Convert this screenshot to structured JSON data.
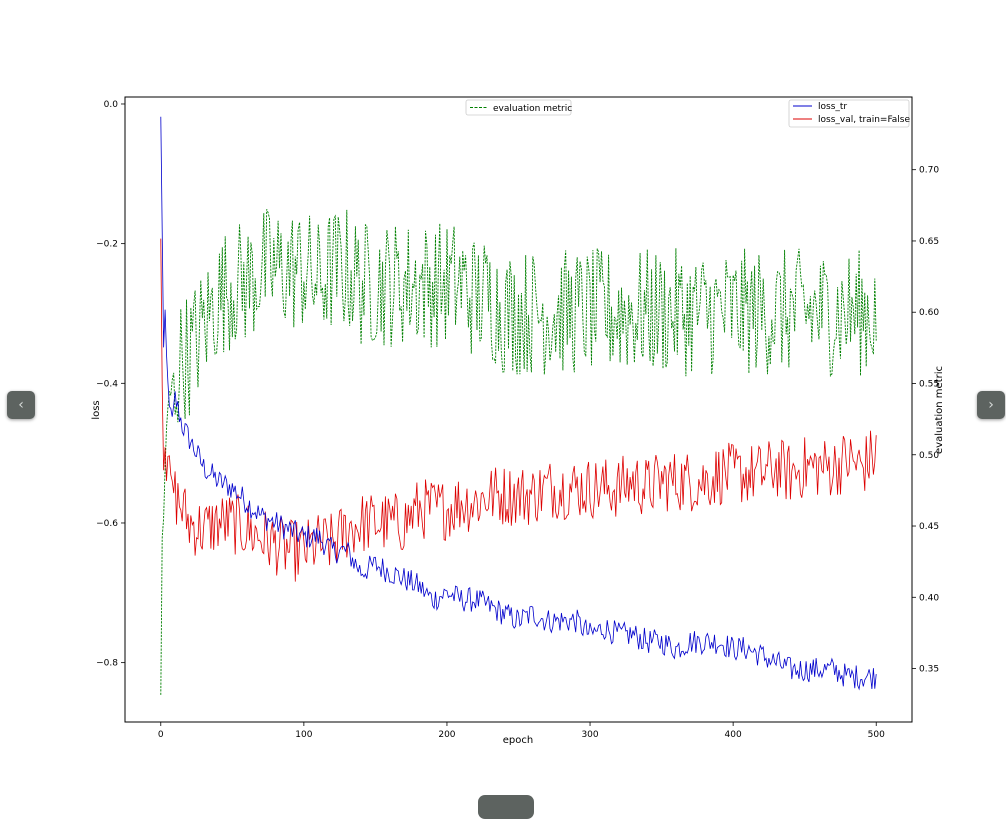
{
  "navigation": {
    "prev_icon": "chevron-left-icon",
    "next_icon": "chevron-right-icon",
    "prev_glyph": "‹",
    "next_glyph": "›"
  },
  "chart_data": {
    "type": "line",
    "title": "",
    "xlabel": "epoch",
    "ylabel": "loss",
    "y2label": "evaluation metric",
    "xlim": [
      -25,
      525
    ],
    "ylim": [
      -0.885,
      0.01
    ],
    "y2lim": [
      0.3125,
      0.751
    ],
    "xticks": [
      0,
      100,
      200,
      300,
      400,
      500
    ],
    "yticks": [
      0.0,
      -0.2,
      -0.4,
      -0.6,
      -0.8
    ],
    "yticklabels": [
      "0.0",
      "−0.2",
      "−0.4",
      "−0.6",
      "−0.8"
    ],
    "y2ticks": [
      0.35,
      0.4,
      0.45,
      0.5,
      0.55,
      0.6,
      0.65,
      0.7
    ],
    "y2ticklabels": [
      "0.35",
      "0.40",
      "0.45",
      "0.50",
      "0.55",
      "0.60",
      "0.65",
      "0.70"
    ],
    "grid": false,
    "legends": [
      {
        "placement": "top-center",
        "entries": [
          "evaluation metric"
        ]
      },
      {
        "placement": "top-right",
        "entries": [
          "loss_tr",
          "loss_val, train=False"
        ]
      }
    ],
    "series": [
      {
        "name": "loss_tr",
        "axis": "left",
        "color": "#0000cc",
        "style": "solid",
        "x": [
          0,
          1,
          2,
          3,
          4,
          5,
          6,
          8,
          10,
          15,
          20,
          30,
          40,
          50,
          60,
          70,
          80,
          90,
          100,
          110,
          120,
          130,
          140,
          150,
          160,
          170,
          180,
          190,
          200,
          210,
          220,
          230,
          240,
          250,
          260,
          270,
          280,
          290,
          300,
          310,
          320,
          330,
          340,
          350,
          360,
          370,
          380,
          390,
          400,
          410,
          420,
          430,
          440,
          450,
          460,
          470,
          480,
          490,
          500
        ],
        "y": [
          -0.02,
          -0.18,
          -0.35,
          -0.3,
          -0.36,
          -0.4,
          -0.43,
          -0.45,
          -0.42,
          -0.46,
          -0.48,
          -0.52,
          -0.54,
          -0.55,
          -0.57,
          -0.59,
          -0.6,
          -0.61,
          -0.62,
          -0.62,
          -0.64,
          -0.64,
          -0.67,
          -0.66,
          -0.67,
          -0.68,
          -0.69,
          -0.71,
          -0.7,
          -0.71,
          -0.71,
          -0.72,
          -0.73,
          -0.74,
          -0.73,
          -0.74,
          -0.74,
          -0.74,
          -0.76,
          -0.75,
          -0.76,
          -0.76,
          -0.77,
          -0.77,
          -0.78,
          -0.77,
          -0.77,
          -0.77,
          -0.78,
          -0.78,
          -0.79,
          -0.8,
          -0.81,
          -0.81,
          -0.81,
          -0.81,
          -0.82,
          -0.82,
          -0.82
        ]
      },
      {
        "name": "loss_val, train=False",
        "axis": "left",
        "color": "#dd0000",
        "style": "solid",
        "x": [
          0,
          1,
          2,
          3,
          4,
          5,
          8,
          10,
          15,
          20,
          30,
          40,
          50,
          60,
          70,
          80,
          90,
          100,
          110,
          120,
          130,
          140,
          150,
          160,
          170,
          180,
          190,
          200,
          210,
          220,
          230,
          240,
          250,
          260,
          270,
          280,
          290,
          300,
          310,
          320,
          330,
          340,
          350,
          360,
          370,
          380,
          390,
          400,
          410,
          420,
          430,
          440,
          450,
          460,
          470,
          480,
          490,
          500
        ],
        "y": [
          -0.18,
          -0.4,
          -0.52,
          -0.48,
          -0.53,
          -0.5,
          -0.55,
          -0.56,
          -0.58,
          -0.6,
          -0.61,
          -0.6,
          -0.6,
          -0.61,
          -0.62,
          -0.63,
          -0.64,
          -0.64,
          -0.63,
          -0.63,
          -0.61,
          -0.6,
          -0.6,
          -0.6,
          -0.6,
          -0.58,
          -0.58,
          -0.58,
          -0.57,
          -0.57,
          -0.56,
          -0.56,
          -0.56,
          -0.56,
          -0.55,
          -0.55,
          -0.55,
          -0.55,
          -0.55,
          -0.55,
          -0.54,
          -0.55,
          -0.54,
          -0.54,
          -0.54,
          -0.54,
          -0.53,
          -0.53,
          -0.53,
          -0.53,
          -0.52,
          -0.53,
          -0.52,
          -0.52,
          -0.52,
          -0.51,
          -0.52,
          -0.5
        ]
      },
      {
        "name": "evaluation metric",
        "axis": "right",
        "color": "#008000",
        "style": "dashed",
        "x": [
          0,
          1,
          2,
          3,
          5,
          8,
          10,
          15,
          20,
          25,
          30,
          35,
          40,
          50,
          60,
          70,
          80,
          90,
          100,
          110,
          120,
          130,
          140,
          150,
          160,
          170,
          180,
          190,
          200,
          210,
          220,
          230,
          240,
          250,
          260,
          270,
          280,
          290,
          300,
          310,
          320,
          330,
          340,
          350,
          360,
          370,
          380,
          390,
          400,
          410,
          420,
          430,
          440,
          450,
          460,
          470,
          480,
          490,
          500
        ],
        "y": [
          0.33,
          0.44,
          0.46,
          0.49,
          0.53,
          0.55,
          0.55,
          0.57,
          0.57,
          0.58,
          0.59,
          0.6,
          0.61,
          0.62,
          0.62,
          0.63,
          0.63,
          0.63,
          0.63,
          0.62,
          0.63,
          0.63,
          0.62,
          0.62,
          0.62,
          0.62,
          0.62,
          0.62,
          0.62,
          0.62,
          0.61,
          0.61,
          0.6,
          0.6,
          0.6,
          0.6,
          0.6,
          0.6,
          0.6,
          0.6,
          0.6,
          0.6,
          0.6,
          0.6,
          0.6,
          0.6,
          0.6,
          0.6,
          0.6,
          0.6,
          0.6,
          0.6,
          0.6,
          0.6,
          0.6,
          0.6,
          0.6,
          0.6,
          0.6
        ]
      }
    ]
  }
}
